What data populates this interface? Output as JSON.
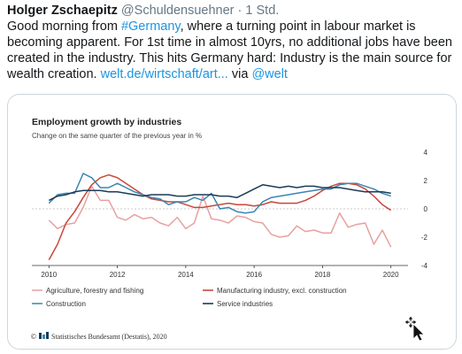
{
  "tweet": {
    "author_name": "Holger Zschaepitz",
    "author_handle": "@Schuldensuehner",
    "separator": "·",
    "time": "1 Std.",
    "text_1": "Good morning from ",
    "hashtag": "#Germany",
    "text_2": ", where a turning point in labour market is becoming apparent. For 1st time in almost 10yrs, no additional jobs have been created in the industry. This hits Germany hard: Industry is the main source for wealth creation. ",
    "link": "welt.de/wirtschaft/art...",
    "via": " via ",
    "mention": "@welt"
  },
  "colors": {
    "agriculture": "#e7a1a0",
    "manufacturing": "#c9473b",
    "construction": "#3a86b3",
    "service": "#1c3b57",
    "link": "#1b95e0"
  },
  "cursor": {
    "icon": "move-cursor-icon"
  },
  "chart_data": {
    "type": "line",
    "title": "Employment growth by industries",
    "subtitle": "Change on the same quarter of the previous year in %",
    "xlim": [
      2009.5,
      2020.5
    ],
    "ylim": [
      -4,
      4
    ],
    "x_ticks": [
      2010,
      2012,
      2014,
      2016,
      2018,
      2020
    ],
    "y_ticks": [
      4,
      2,
      0,
      -2,
      -4
    ],
    "grid": "none",
    "legend_position": "bottom",
    "source": "Statistisches Bundesamt (Destatis), 2020",
    "series": [
      {
        "name": "Agriculture, forestry and fishing",
        "color_key": "agriculture",
        "points": [
          [
            2010.0,
            -0.8
          ],
          [
            2010.25,
            -1.4
          ],
          [
            2010.5,
            -1.1
          ],
          [
            2010.75,
            -1.0
          ],
          [
            2011.0,
            0.1
          ],
          [
            2011.25,
            1.6
          ],
          [
            2011.5,
            0.6
          ],
          [
            2011.75,
            0.6
          ],
          [
            2012.0,
            -0.6
          ],
          [
            2012.25,
            -0.8
          ],
          [
            2012.5,
            -0.4
          ],
          [
            2012.75,
            -0.7
          ],
          [
            2013.0,
            -0.6
          ],
          [
            2013.25,
            -1.0
          ],
          [
            2013.5,
            -1.2
          ],
          [
            2013.75,
            -0.6
          ],
          [
            2014.0,
            -1.4
          ],
          [
            2014.25,
            -1.0
          ],
          [
            2014.5,
            0.9
          ],
          [
            2014.75,
            -0.7
          ],
          [
            2015.0,
            -0.8
          ],
          [
            2015.25,
            -1.0
          ],
          [
            2015.5,
            -0.5
          ],
          [
            2015.75,
            -0.6
          ],
          [
            2016.0,
            -0.9
          ],
          [
            2016.25,
            -1.0
          ],
          [
            2016.5,
            -1.8
          ],
          [
            2016.75,
            -2.0
          ],
          [
            2017.0,
            -1.9
          ],
          [
            2017.25,
            -1.2
          ],
          [
            2017.5,
            -1.6
          ],
          [
            2017.75,
            -1.5
          ],
          [
            2018.0,
            -1.7
          ],
          [
            2018.25,
            -1.7
          ],
          [
            2018.5,
            -0.3
          ],
          [
            2018.75,
            -1.3
          ],
          [
            2019.0,
            -1.1
          ],
          [
            2019.25,
            -1.0
          ],
          [
            2019.5,
            -2.5
          ],
          [
            2019.75,
            -1.5
          ],
          [
            2020.0,
            -2.7
          ]
        ]
      },
      {
        "name": "Manufacturing industry, excl. construction",
        "color_key": "manufacturing",
        "points": [
          [
            2010.0,
            -3.6
          ],
          [
            2010.25,
            -2.5
          ],
          [
            2010.5,
            -1.0
          ],
          [
            2010.75,
            -0.2
          ],
          [
            2011.0,
            0.8
          ],
          [
            2011.25,
            1.7
          ],
          [
            2011.5,
            2.2
          ],
          [
            2011.75,
            2.4
          ],
          [
            2012.0,
            2.2
          ],
          [
            2012.25,
            1.8
          ],
          [
            2012.5,
            1.4
          ],
          [
            2012.75,
            1.0
          ],
          [
            2013.0,
            0.7
          ],
          [
            2013.25,
            0.6
          ],
          [
            2013.5,
            0.5
          ],
          [
            2013.75,
            0.5
          ],
          [
            2014.0,
            0.3
          ],
          [
            2014.25,
            0.1
          ],
          [
            2014.5,
            0.1
          ],
          [
            2014.75,
            0.2
          ],
          [
            2015.0,
            0.3
          ],
          [
            2015.25,
            0.4
          ],
          [
            2015.5,
            0.3
          ],
          [
            2015.75,
            0.3
          ],
          [
            2016.0,
            0.2
          ],
          [
            2016.25,
            0.3
          ],
          [
            2016.5,
            0.5
          ],
          [
            2016.75,
            0.4
          ],
          [
            2017.0,
            0.4
          ],
          [
            2017.25,
            0.4
          ],
          [
            2017.5,
            0.6
          ],
          [
            2017.75,
            0.9
          ],
          [
            2018.0,
            1.3
          ],
          [
            2018.25,
            1.6
          ],
          [
            2018.5,
            1.8
          ],
          [
            2018.75,
            1.8
          ],
          [
            2019.0,
            1.7
          ],
          [
            2019.25,
            1.4
          ],
          [
            2019.5,
            0.9
          ],
          [
            2019.75,
            0.3
          ],
          [
            2020.0,
            -0.1
          ]
        ]
      },
      {
        "name": "Construction",
        "color_key": "construction",
        "points": [
          [
            2010.0,
            0.4
          ],
          [
            2010.25,
            1.0
          ],
          [
            2010.5,
            1.1
          ],
          [
            2010.75,
            1.1
          ],
          [
            2011.0,
            2.5
          ],
          [
            2011.25,
            2.2
          ],
          [
            2011.5,
            1.5
          ],
          [
            2011.75,
            1.5
          ],
          [
            2012.0,
            1.8
          ],
          [
            2012.25,
            1.5
          ],
          [
            2012.5,
            1.2
          ],
          [
            2012.75,
            1.0
          ],
          [
            2013.0,
            0.8
          ],
          [
            2013.25,
            0.7
          ],
          [
            2013.5,
            0.3
          ],
          [
            2013.75,
            0.5
          ],
          [
            2014.0,
            0.5
          ],
          [
            2014.25,
            0.8
          ],
          [
            2014.5,
            0.6
          ],
          [
            2014.75,
            1.1
          ],
          [
            2015.0,
            0.0
          ],
          [
            2015.25,
            0.1
          ],
          [
            2015.5,
            -0.2
          ],
          [
            2015.75,
            -0.3
          ],
          [
            2016.0,
            -0.2
          ],
          [
            2016.25,
            0.5
          ],
          [
            2016.5,
            0.8
          ],
          [
            2016.75,
            0.9
          ],
          [
            2017.0,
            1.0
          ],
          [
            2017.25,
            1.1
          ],
          [
            2017.5,
            1.2
          ],
          [
            2017.75,
            1.3
          ],
          [
            2018.0,
            1.4
          ],
          [
            2018.25,
            1.4
          ],
          [
            2018.5,
            1.7
          ],
          [
            2018.75,
            1.8
          ],
          [
            2019.0,
            1.8
          ],
          [
            2019.25,
            1.6
          ],
          [
            2019.5,
            1.4
          ],
          [
            2019.75,
            1.1
          ],
          [
            2020.0,
            0.9
          ]
        ]
      },
      {
        "name": "Service industries",
        "color_key": "service",
        "points": [
          [
            2010.0,
            0.6
          ],
          [
            2010.25,
            0.9
          ],
          [
            2010.5,
            1.0
          ],
          [
            2010.75,
            1.2
          ],
          [
            2011.0,
            1.3
          ],
          [
            2011.25,
            1.3
          ],
          [
            2011.5,
            1.3
          ],
          [
            2011.75,
            1.2
          ],
          [
            2012.0,
            1.2
          ],
          [
            2012.25,
            1.1
          ],
          [
            2012.5,
            1.0
          ],
          [
            2012.75,
            0.9
          ],
          [
            2013.0,
            1.0
          ],
          [
            2013.25,
            1.0
          ],
          [
            2013.5,
            1.0
          ],
          [
            2013.75,
            0.9
          ],
          [
            2014.0,
            0.9
          ],
          [
            2014.25,
            1.0
          ],
          [
            2014.5,
            1.0
          ],
          [
            2014.75,
            1.0
          ],
          [
            2015.0,
            0.9
          ],
          [
            2015.25,
            0.9
          ],
          [
            2015.5,
            0.8
          ],
          [
            2015.75,
            1.1
          ],
          [
            2016.0,
            1.4
          ],
          [
            2016.25,
            1.7
          ],
          [
            2016.5,
            1.6
          ],
          [
            2016.75,
            1.5
          ],
          [
            2017.0,
            1.6
          ],
          [
            2017.25,
            1.5
          ],
          [
            2017.5,
            1.6
          ],
          [
            2017.75,
            1.6
          ],
          [
            2018.0,
            1.5
          ],
          [
            2018.25,
            1.5
          ],
          [
            2018.5,
            1.5
          ],
          [
            2018.75,
            1.4
          ],
          [
            2019.0,
            1.3
          ],
          [
            2019.25,
            1.2
          ],
          [
            2019.5,
            1.2
          ],
          [
            2019.75,
            1.2
          ],
          [
            2020.0,
            1.1
          ]
        ]
      }
    ]
  }
}
